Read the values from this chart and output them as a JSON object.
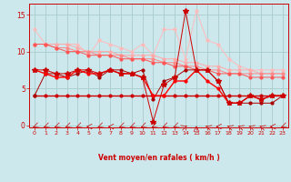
{
  "x": [
    0,
    1,
    2,
    3,
    4,
    5,
    6,
    7,
    8,
    9,
    10,
    11,
    12,
    13,
    14,
    15,
    16,
    17,
    18,
    19,
    20,
    21,
    22,
    23
  ],
  "background_color": "#cce8ec",
  "grid_color": "#aacccc",
  "xlabel": "Vent moyen/en rafales ( km/h )",
  "xlabel_color": "#cc0000",
  "tick_color": "#cc0000",
  "yticks": [
    0,
    5,
    10,
    15
  ],
  "ylim": [
    -0.3,
    16.5
  ],
  "xlim": [
    -0.5,
    23.5
  ],
  "line1_color": "#ffbbbb",
  "line1_y": [
    13.0,
    11.0,
    11.0,
    11.0,
    11.0,
    9.5,
    11.5,
    11.0,
    10.5,
    10.0,
    11.0,
    9.5,
    13.0,
    13.0,
    9.0,
    15.5,
    11.5,
    11.0,
    9.0,
    8.0,
    7.5,
    7.5,
    7.5,
    7.5
  ],
  "line2_color": "#ffaaaa",
  "line2_y": [
    11.0,
    11.0,
    11.0,
    11.0,
    10.5,
    10.0,
    10.0,
    10.0,
    9.5,
    9.5,
    9.5,
    9.5,
    9.0,
    9.0,
    8.5,
    8.5,
    8.0,
    8.0,
    7.5,
    7.5,
    7.5,
    7.0,
    7.0,
    7.0
  ],
  "line3_color": "#ff8888",
  "line3_y": [
    11.0,
    11.0,
    10.5,
    10.5,
    10.0,
    10.0,
    9.5,
    9.5,
    9.5,
    9.0,
    9.0,
    9.0,
    8.5,
    8.5,
    8.0,
    8.0,
    7.5,
    7.5,
    7.0,
    7.0,
    7.0,
    7.0,
    7.0,
    7.0
  ],
  "line4_color": "#ff5555",
  "line4_y": [
    11.0,
    11.0,
    10.5,
    10.0,
    10.0,
    9.5,
    9.5,
    9.5,
    9.0,
    9.0,
    9.0,
    8.5,
    8.5,
    8.0,
    8.0,
    7.5,
    7.5,
    7.0,
    7.0,
    7.0,
    6.5,
    6.5,
    6.5,
    6.5
  ],
  "line5_color": "#cc0000",
  "line5_y": [
    4.0,
    4.0,
    4.0,
    4.0,
    4.0,
    4.0,
    4.0,
    4.0,
    4.0,
    4.0,
    4.0,
    4.0,
    4.0,
    4.0,
    4.0,
    4.0,
    4.0,
    4.0,
    4.0,
    4.0,
    4.0,
    4.0,
    4.0,
    4.0
  ],
  "line6_color": "#aa0000",
  "line6_y": [
    4.0,
    7.0,
    7.0,
    6.5,
    7.0,
    7.5,
    6.5,
    7.5,
    7.5,
    7.0,
    7.5,
    3.5,
    6.0,
    6.5,
    7.5,
    7.5,
    7.5,
    6.0,
    3.0,
    3.0,
    3.0,
    3.0,
    3.0,
    4.0
  ],
  "line7_color": "#ff0000",
  "line7_y": [
    7.5,
    7.0,
    6.5,
    6.5,
    7.5,
    7.0,
    7.0,
    7.5,
    7.0,
    7.0,
    6.5,
    4.0,
    4.0,
    6.0,
    6.0,
    7.5,
    6.0,
    5.0,
    3.0,
    3.0,
    4.0,
    3.5,
    4.0,
    4.0
  ],
  "line8_color": "#cc0000",
  "line8_y": [
    7.5,
    7.5,
    7.0,
    7.0,
    7.5,
    7.5,
    7.0,
    7.5,
    7.0,
    7.0,
    6.5,
    0.5,
    5.5,
    6.5,
    15.5,
    7.5,
    7.5,
    6.0,
    3.0,
    3.0,
    4.0,
    3.5,
    4.0,
    4.0
  ],
  "arrow_angles": [
    225,
    225,
    225,
    225,
    225,
    270,
    225,
    270,
    225,
    225,
    225,
    225,
    225,
    225,
    45,
    0,
    315,
    270,
    315,
    315,
    315,
    315,
    270,
    225
  ]
}
